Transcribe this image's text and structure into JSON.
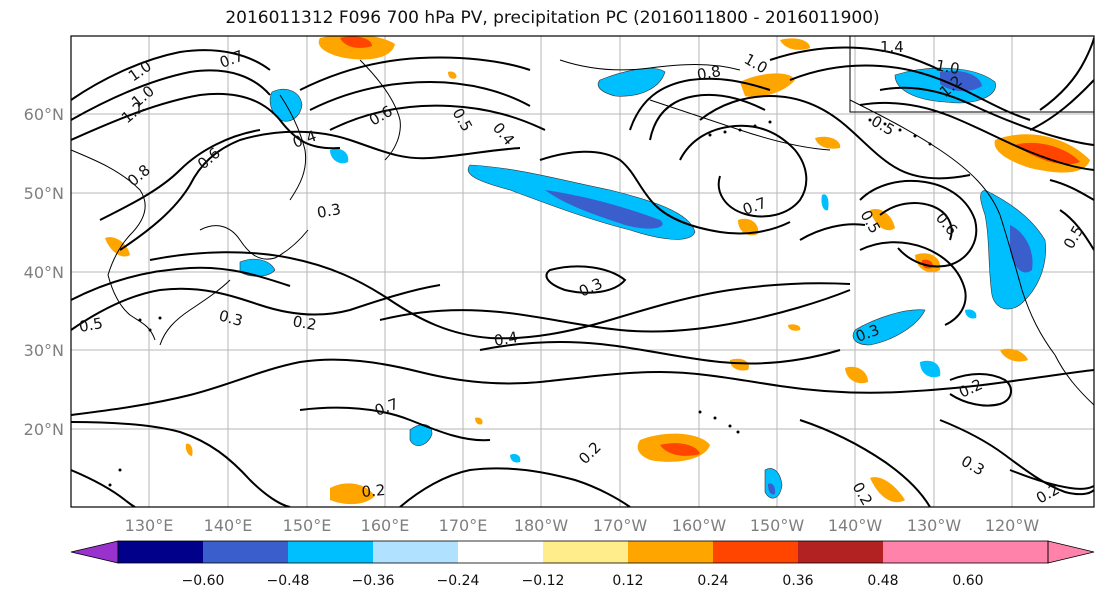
{
  "title": "2016011312 F096 700 hPa PV, precipitation PC (2016011800 - 2016011900)",
  "map": {
    "lon_ticks": [
      "130°E",
      "140°E",
      "150°E",
      "160°E",
      "170°E",
      "180°W",
      "170°W",
      "160°W",
      "150°W",
      "140°W",
      "130°W",
      "120°W"
    ],
    "lat_ticks": [
      "60°N",
      "50°N",
      "40°N",
      "30°N",
      "20°N"
    ],
    "contour_labels": [
      "1.0",
      "0.7",
      "1.0",
      "1.2",
      "0.8",
      "0.6",
      "0.4",
      "0.3",
      "0.6",
      "0.5",
      "0.4",
      "0.5",
      "0.3",
      "0.2",
      "0.3",
      "0.4",
      "0.2",
      "0.2",
      "0.2",
      "0.7",
      "0.8",
      "1.0",
      "1.4",
      "1.0",
      "1.2",
      "0.5",
      "0.7",
      "0.5",
      "0.6",
      "0.3",
      "0.2",
      "0.3",
      "0.2",
      "0.5"
    ]
  },
  "colorbar": {
    "ticks": [
      "−0.60",
      "−0.48",
      "−0.36",
      "−0.24",
      "−0.12",
      "0.12",
      "0.24",
      "0.36",
      "0.48",
      "0.60"
    ],
    "colors": [
      "#9932cc",
      "#00008b",
      "#3a5fcd",
      "#00bfff",
      "#b0e2ff",
      "#ffffff",
      "#ffec8b",
      "#ffa500",
      "#ff4500",
      "#b22222",
      "#ff82ab"
    ]
  }
}
